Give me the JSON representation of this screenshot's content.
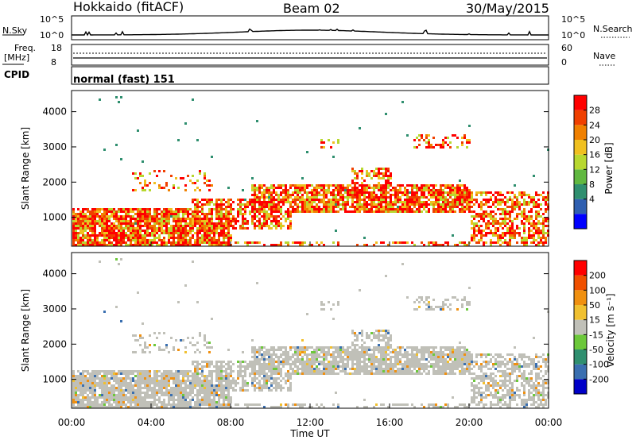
{
  "header": {
    "station": "Hokkaido (fitACF)",
    "beam": "Beam 02",
    "date": "30/May/2015"
  },
  "noise_panel": {
    "left_label": "N.Sky",
    "right_label": "N.Search",
    "left_ticks": [
      "10^5",
      "10^0"
    ],
    "right_ticks": [
      "10^5",
      "10^0"
    ]
  },
  "freq_panel": {
    "left_label_1": "Freq.",
    "left_label_2": "[MHz]",
    "left_ticks": [
      "18",
      "8"
    ],
    "right_label": "Nave",
    "right_ticks": [
      "60",
      "0"
    ]
  },
  "cpid_panel": {
    "label": "CPID",
    "text": "normal (fast) 151"
  },
  "chart_data": [
    {
      "type": "heatmap",
      "panel": "power",
      "ylabel": "Slant Range [km]",
      "yticks": [
        "1000",
        "2000",
        "3000",
        "4000"
      ],
      "ylim": [
        180,
        4600
      ],
      "xlim": [
        "00:00",
        "24:00"
      ],
      "colorbar_label": "Power [dB]",
      "colorbar_ticks": [
        "28",
        "24",
        "20",
        "16",
        "12",
        "8",
        "4"
      ],
      "colors": [
        "#0000ff",
        "#2f5fb0",
        "#2f8f6f",
        "#60b840",
        "#b8d830",
        "#f0c020",
        "#f08000",
        "#f04000",
        "#ff0000"
      ]
    },
    {
      "type": "heatmap",
      "panel": "velocity",
      "ylabel": "Slant Range [km]",
      "yticks": [
        "1000",
        "2000",
        "3000",
        "4000"
      ],
      "ylim": [
        180,
        4600
      ],
      "xlim": [
        "00:00",
        "24:00"
      ],
      "colorbar_label": "Velocity [m s⁻¹]",
      "colorbar_ticks": [
        "200",
        "100",
        "50",
        "15",
        "-15",
        "-50",
        "-100",
        "-200"
      ],
      "colors": [
        "#0000c8",
        "#3a6fb0",
        "#2f8f6f",
        "#6cc83a",
        "#c0c0b8",
        "#f0c030",
        "#f09010",
        "#f05000",
        "#ff0000"
      ]
    }
  ],
  "xaxis": {
    "ticks": [
      "00:00",
      "04:00",
      "08:00",
      "12:00",
      "16:00",
      "20:00",
      "00:00"
    ],
    "label": "Time UT"
  }
}
